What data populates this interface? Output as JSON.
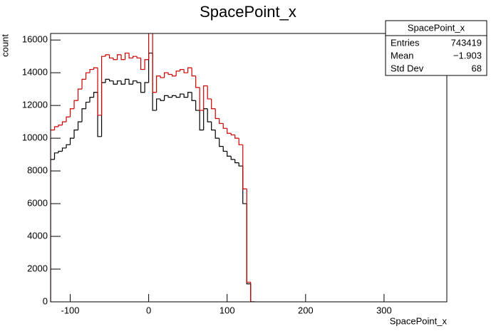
{
  "chart_data": {
    "type": "histogram",
    "title": "SpacePoint_x",
    "x_label": "SpacePoint_x",
    "y_label": "count",
    "bins": [
      -125,
      -120,
      -115,
      -110,
      -105,
      -100,
      -95,
      -90,
      -85,
      -80,
      -75,
      -70,
      -65,
      -60,
      -55,
      -50,
      -45,
      -40,
      -35,
      -30,
      -25,
      -20,
      -15,
      -10,
      -5,
      0,
      5,
      10,
      15,
      20,
      25,
      30,
      35,
      40,
      45,
      50,
      55,
      60,
      65,
      70,
      75,
      80,
      85,
      90,
      95,
      100,
      105,
      110,
      115,
      120,
      125,
      130,
      135
    ],
    "series": [
      {
        "name": "black",
        "color": "#000000",
        "values": [
          8700,
          9100,
          9200,
          9400,
          9600,
          10000,
          10500,
          11000,
          11800,
          12200,
          12500,
          12800,
          10100,
          13400,
          13600,
          13500,
          13300,
          13500,
          13300,
          13600,
          13300,
          13500,
          13400,
          12800,
          13400,
          15200,
          11700,
          12400,
          12300,
          12600,
          12500,
          12600,
          12500,
          12700,
          12500,
          12800,
          12300,
          11700,
          10500,
          11800,
          11000,
          10500,
          10000,
          9500,
          9200,
          8900,
          8700,
          8500,
          8300,
          6000,
          1100,
          0
        ]
      },
      {
        "name": "red",
        "color": "#cc0000",
        "values": [
          10500,
          10700,
          10800,
          11000,
          11300,
          11800,
          12300,
          13000,
          13600,
          14000,
          14200,
          14300,
          11400,
          15000,
          15100,
          14900,
          14800,
          15100,
          14800,
          15200,
          14900,
          15000,
          14900,
          14200,
          14800,
          16600,
          12800,
          13800,
          13700,
          14000,
          13900,
          13800,
          14100,
          14200,
          14000,
          14300,
          13800,
          13100,
          11700,
          13200,
          12400,
          11800,
          11200,
          10900,
          10600,
          10300,
          10200,
          10000,
          9600,
          6900,
          1200,
          0
        ]
      }
    ],
    "xlim": [
      -125,
      380
    ],
    "ylim": [
      0,
      16400
    ],
    "xticks": [
      -100,
      0,
      100,
      200,
      300
    ],
    "yticks": [
      0,
      2000,
      4000,
      6000,
      8000,
      10000,
      12000,
      14000,
      16000
    ],
    "stats": {
      "title": "SpacePoint_x",
      "rows": [
        {
          "label": "Entries",
          "value": "743419"
        },
        {
          "label": "Mean",
          "value": "−1.903"
        },
        {
          "label": "Std Dev",
          "value": "68"
        }
      ]
    }
  }
}
